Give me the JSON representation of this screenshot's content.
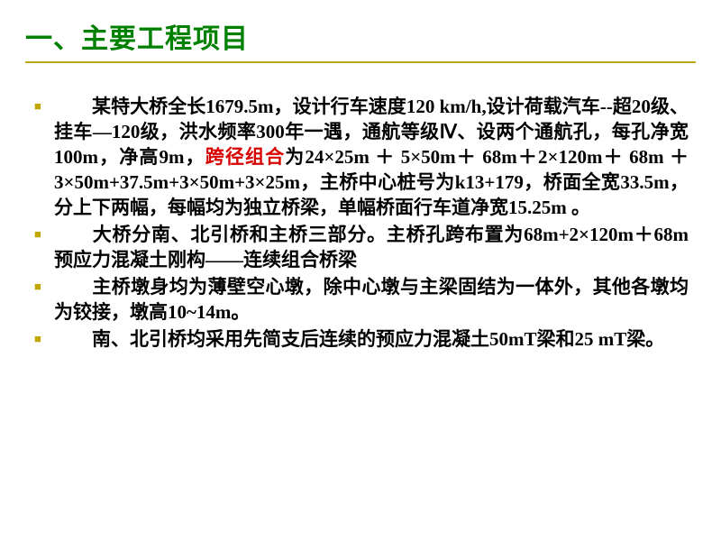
{
  "slide": {
    "title": "一、主要工程项目",
    "title_color": "#008000",
    "title_fontsize": 30,
    "title_underline_color": "#b8a818",
    "bullet_color": "#c0a800",
    "body_fontsize": 21,
    "body_lineheight": 28,
    "highlight_color": "#d80000",
    "items": [
      {
        "pre": "某特大桥全长1679.5m，设计行车速度120  km/h,设计荷载汽车--超20级、挂车—120级，洪水频率300年一遇，通航等级Ⅳ、设两个通航孔，每孔净宽100m，净高9m，",
        "hl": "跨径组合",
        "post": "为24×25m ＋ 5×50m＋ 68m＋2×120m＋ 68m ＋ 3×50m+37.5m+3×50m+3×25m，主桥中心桩号为k13+179，桥面全宽33.5m，分上下两幅，每幅均为独立桥梁，单幅桥面行车道净宽15.25m 。"
      },
      {
        "pre": "大桥分南、北引桥和主桥三部分。主桥孔跨布置为68m+2×120m＋68m预应力混凝土刚构——连续组合桥梁",
        "hl": "",
        "post": ""
      },
      {
        "pre": "主桥墩身均为薄壁空心墩，除中心墩与主梁固结为一体外，其他各墩均为铰接，墩高10~14m。",
        "hl": "",
        "post": ""
      },
      {
        "pre": "南、北引桥均采用先简支后连续的预应力混凝土50mT梁和25 mT梁。",
        "hl": "",
        "post": ""
      }
    ]
  }
}
